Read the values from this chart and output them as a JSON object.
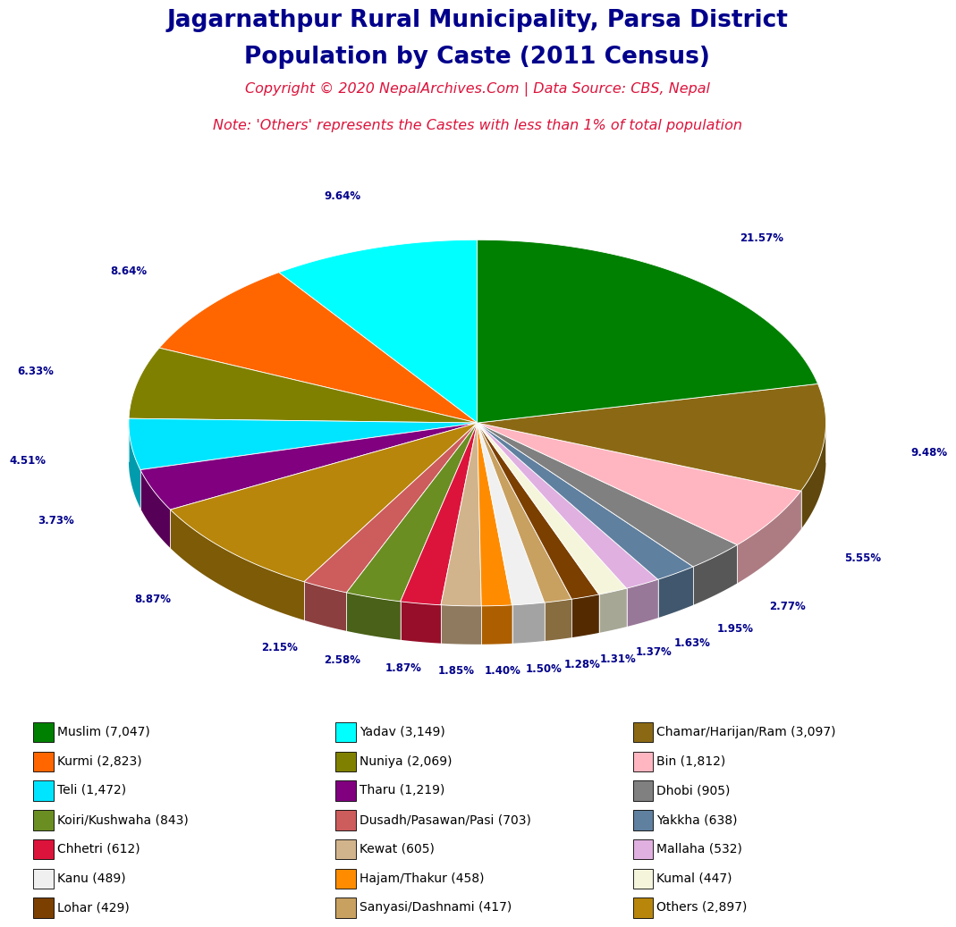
{
  "title_line1": "Jagarnathpur Rural Municipality, Parsa District",
  "title_line2": "Population by Caste (2011 Census)",
  "copyright_text": "Copyright © 2020 NepalArchives.Com | Data Source: CBS, Nepal",
  "note_text": "Note: 'Others' represents the Castes with less than 1% of total population",
  "title_color": "#00008B",
  "copyright_color": "#DC143C",
  "note_color": "#DC143C",
  "label_color": "#00008B",
  "ordered_slices": [
    {
      "label": "Muslim (7,047)",
      "value": 7047,
      "color": "#008000"
    },
    {
      "label": "Chamar/Harijan/Ram (3,097)",
      "value": 3097,
      "color": "#8B6914"
    },
    {
      "label": "Bin (1,812)",
      "value": 1812,
      "color": "#FFB6C1"
    },
    {
      "label": "Dhobi (905)",
      "value": 905,
      "color": "#808080"
    },
    {
      "label": "Yakkha (638)",
      "value": 638,
      "color": "#6080A0"
    },
    {
      "label": "Mallaha (532)",
      "value": 532,
      "color": "#E0B0E0"
    },
    {
      "label": "Kumal (447)",
      "value": 447,
      "color": "#F5F5DC"
    },
    {
      "label": "Lohar (429)",
      "value": 429,
      "color": "#7B3F00"
    },
    {
      "label": "Sanyasi/Dashnami (417)",
      "value": 417,
      "color": "#C8A060"
    },
    {
      "label": "Kanu (489)",
      "value": 489,
      "color": "#F0F0F0"
    },
    {
      "label": "Hajam/Thakur (458)",
      "value": 458,
      "color": "#FF8C00"
    },
    {
      "label": "Kewat (605)",
      "value": 605,
      "color": "#D2B48C"
    },
    {
      "label": "Chhetri (612)",
      "value": 612,
      "color": "#DC143C"
    },
    {
      "label": "Koiri/Kushwaha (843)",
      "value": 843,
      "color": "#6B8E23"
    },
    {
      "label": "Dusadh/Pasawan/Pasi (703)",
      "value": 703,
      "color": "#CD5C5C"
    },
    {
      "label": "Others (2,897)",
      "value": 2897,
      "color": "#B8860B"
    },
    {
      "label": "Tharu (1,219)",
      "value": 1219,
      "color": "#800080"
    },
    {
      "label": "Teli (1,472)",
      "value": 1472,
      "color": "#00E5FF"
    },
    {
      "label": "Nuniya (2,069)",
      "value": 2069,
      "color": "#808000"
    },
    {
      "label": "Kurmi (2,823)",
      "value": 2823,
      "color": "#FF6600"
    },
    {
      "label": "Yadav (3,149)",
      "value": 3149,
      "color": "#00FFFF"
    }
  ],
  "legend_col1": [
    {
      "label": "Muslim (7,047)",
      "color": "#008000"
    },
    {
      "label": "Kurmi (2,823)",
      "color": "#FF6600"
    },
    {
      "label": "Teli (1,472)",
      "color": "#00E5FF"
    },
    {
      "label": "Koiri/Kushwaha (843)",
      "color": "#6B8E23"
    },
    {
      "label": "Chhetri (612)",
      "color": "#DC143C"
    },
    {
      "label": "Kanu (489)",
      "color": "#F0F0F0"
    },
    {
      "label": "Lohar (429)",
      "color": "#7B3F00"
    }
  ],
  "legend_col2": [
    {
      "label": "Yadav (3,149)",
      "color": "#00FFFF"
    },
    {
      "label": "Nuniya (2,069)",
      "color": "#808000"
    },
    {
      "label": "Tharu (1,219)",
      "color": "#800080"
    },
    {
      "label": "Dusadh/Pasawan/Pasi (703)",
      "color": "#CD5C5C"
    },
    {
      "label": "Kewat (605)",
      "color": "#D2B48C"
    },
    {
      "label": "Hajam/Thakur (458)",
      "color": "#FF8C00"
    },
    {
      "label": "Sanyasi/Dashnami (417)",
      "color": "#C8A060"
    }
  ],
  "legend_col3": [
    {
      "label": "Chamar/Harijan/Ram (3,097)",
      "color": "#8B6914"
    },
    {
      "label": "Bin (1,812)",
      "color": "#FFB6C1"
    },
    {
      "label": "Dhobi (905)",
      "color": "#808080"
    },
    {
      "label": "Yakkha (638)",
      "color": "#6080A0"
    },
    {
      "label": "Mallaha (532)",
      "color": "#E0B0E0"
    },
    {
      "label": "Kumal (447)",
      "color": "#F5F5DC"
    },
    {
      "label": "Others (2,897)",
      "color": "#B8860B"
    }
  ],
  "background_color": "#FFFFFF"
}
